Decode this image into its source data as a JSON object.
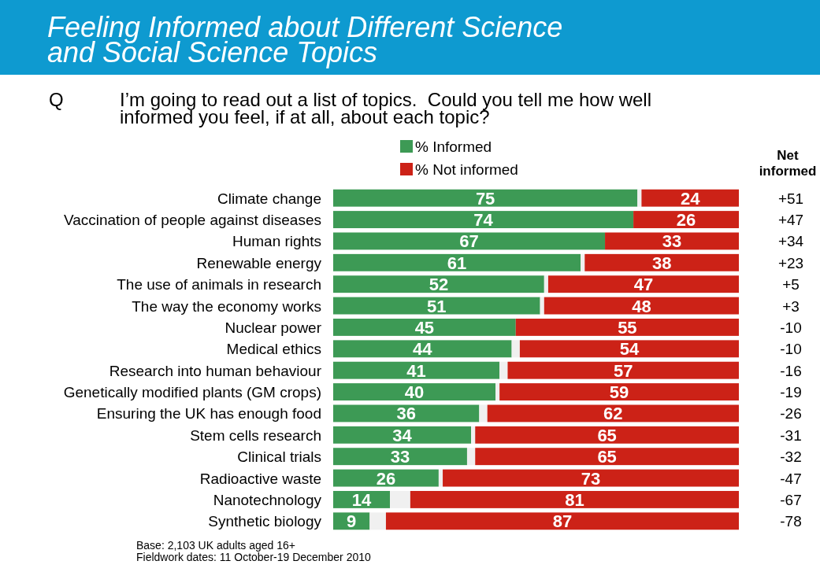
{
  "chart_data": {
    "type": "bar",
    "orientation": "horizontal",
    "stacked": true,
    "title": "Feeling Informed about Different Science and Social Science Topics",
    "subtitle": "Q I’m going to read out a list of topics.  Could you tell me how well informed you feel, if at all, about each topic?",
    "categories": [
      "Climate change",
      "Vaccination of people against diseases",
      "Human rights",
      "Renewable energy",
      "The use of animals in research",
      "The way the economy works",
      "Nuclear power",
      "Medical ethics",
      "Research into human behaviour",
      "Genetically modified plants (GM crops)",
      "Ensuring the UK has enough food",
      "Stem cells research",
      "Clinical trials",
      "Radioactive waste",
      "Nanotechnology",
      "Synthetic biology"
    ],
    "series": [
      {
        "name": "% Informed",
        "color": "#3d9a55",
        "values": [
          75,
          74,
          67,
          61,
          52,
          51,
          45,
          44,
          41,
          40,
          36,
          34,
          33,
          26,
          14,
          9
        ],
        "value_labels": [
          "75",
          "74",
          "67",
          "61",
          "52",
          "51",
          "45",
          "44",
          "41",
          "40",
          "36",
          "34",
          "33",
          "26",
          "14",
          "9"
        ]
      },
      {
        "color": "#f0f0f0",
        "values": [
          1,
          0,
          0,
          1,
          1,
          1,
          0,
          2,
          2,
          1,
          2,
          1,
          2,
          1,
          5,
          4
        ],
        "value_labels": [
          null,
          null,
          null,
          null,
          null,
          null,
          null,
          null,
          null,
          null,
          null,
          null,
          null,
          null,
          null,
          null
        ]
      },
      {
        "name": "% Not informed",
        "color": "#cc2217",
        "values": [
          24,
          26,
          33,
          38,
          47,
          48,
          55,
          54,
          57,
          59,
          62,
          65,
          65,
          73,
          81,
          87
        ],
        "value_labels": [
          "24",
          "26",
          "33",
          "38",
          "47",
          "48",
          "55",
          "54",
          "57",
          "59",
          "62",
          "65",
          "65",
          "73",
          "81",
          "87"
        ]
      }
    ],
    "xlim": [
      0,
      100
    ],
    "tick_labels": "y",
    "legend": "top",
    "annotations": [
      "Net informed",
      "Base: 2,103 UK adults aged 16+",
      "Fieldwork dates: 11 October-19 December 2010",
      "+51",
      "+47",
      "+34",
      "+23",
      "+5",
      "+3",
      "-10",
      "-10",
      "-16",
      "-19",
      "-26",
      "-31",
      "-32",
      "-47",
      "-67",
      "-78"
    ]
  }
}
